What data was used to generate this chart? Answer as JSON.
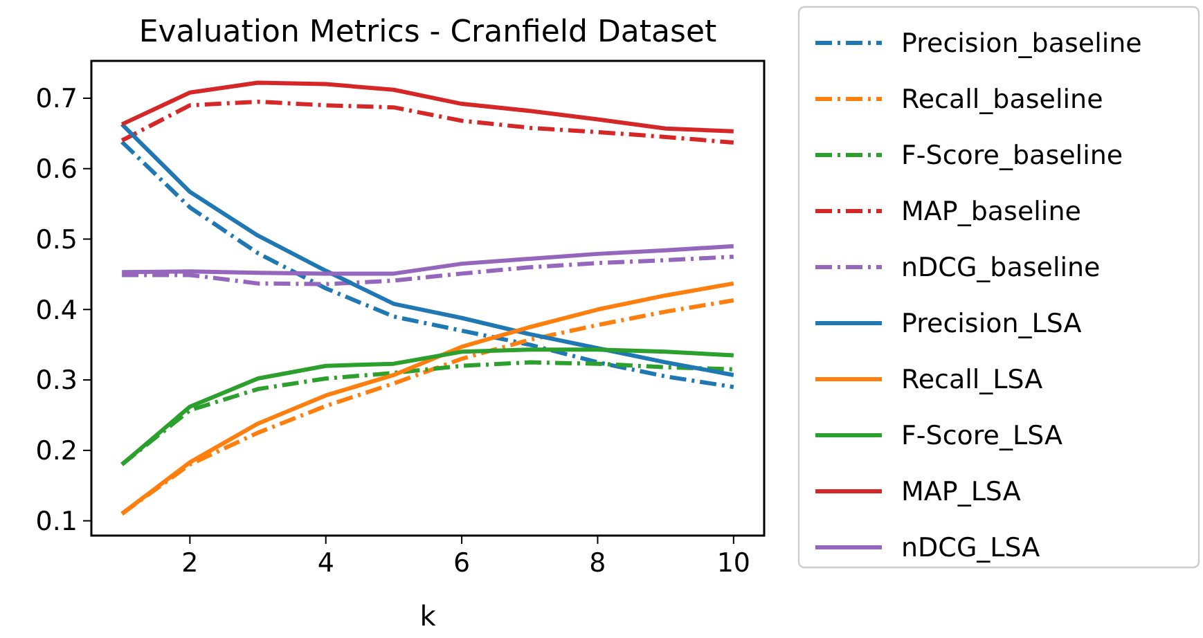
{
  "chart_data": {
    "type": "line",
    "title": "Evaluation Metrics - Cranfield Dataset",
    "xlabel": "k",
    "x": [
      1,
      2,
      3,
      4,
      5,
      6,
      7,
      8,
      9,
      10
    ],
    "xlim": [
      0.55,
      10.45
    ],
    "xticks": [
      2,
      4,
      6,
      8,
      10
    ],
    "ylim": [
      0.079,
      0.753
    ],
    "yticks": [
      {
        "value": 0.1,
        "label": "0.1"
      },
      {
        "value": 0.2,
        "label": "0.2"
      },
      {
        "value": 0.3,
        "label": "0.3"
      },
      {
        "value": 0.4,
        "label": "0.4"
      },
      {
        "value": 0.5,
        "label": "0.5"
      },
      {
        "value": 0.6,
        "label": "0.6"
      },
      {
        "value": 0.7,
        "label": "0.7"
      }
    ],
    "grid": false,
    "legend": "right",
    "marker": "none",
    "series": [
      {
        "name": "Precision_baseline",
        "color": "#1f77b4",
        "line_style": "dashdot",
        "values": [
          0.638,
          0.545,
          0.48,
          0.43,
          0.39,
          0.37,
          0.35,
          0.325,
          0.305,
          0.29
        ]
      },
      {
        "name": "Recall_baseline",
        "color": "#ff7f0e",
        "line_style": "dashdot",
        "values": [
          0.11,
          0.18,
          0.225,
          0.263,
          0.295,
          0.33,
          0.357,
          0.378,
          0.397,
          0.413
        ]
      },
      {
        "name": "F-Score_baseline",
        "color": "#2ca02c",
        "line_style": "dashdot",
        "values": [
          0.18,
          0.257,
          0.287,
          0.302,
          0.31,
          0.32,
          0.325,
          0.323,
          0.318,
          0.315
        ]
      },
      {
        "name": "MAP_baseline",
        "color": "#d62728",
        "line_style": "dashdot",
        "values": [
          0.64,
          0.69,
          0.695,
          0.69,
          0.687,
          0.668,
          0.658,
          0.652,
          0.645,
          0.637
        ]
      },
      {
        "name": "nDCG_baseline",
        "color": "#9467bd",
        "line_style": "dashdot",
        "values": [
          0.449,
          0.449,
          0.437,
          0.436,
          0.441,
          0.451,
          0.46,
          0.466,
          0.47,
          0.475
        ]
      },
      {
        "name": "Precision_LSA",
        "color": "#1f77b4",
        "line_style": "solid",
        "values": [
          0.663,
          0.567,
          0.505,
          0.455,
          0.408,
          0.388,
          0.365,
          0.345,
          0.325,
          0.307
        ]
      },
      {
        "name": "Recall_LSA",
        "color": "#ff7f0e",
        "line_style": "solid",
        "values": [
          0.11,
          0.183,
          0.238,
          0.278,
          0.307,
          0.347,
          0.375,
          0.4,
          0.42,
          0.437
        ]
      },
      {
        "name": "F-Score_LSA",
        "color": "#2ca02c",
        "line_style": "solid",
        "values": [
          0.18,
          0.262,
          0.302,
          0.32,
          0.323,
          0.34,
          0.343,
          0.343,
          0.34,
          0.335
        ]
      },
      {
        "name": "MAP_LSA",
        "color": "#d62728",
        "line_style": "solid",
        "values": [
          0.663,
          0.708,
          0.722,
          0.72,
          0.712,
          0.692,
          0.682,
          0.67,
          0.657,
          0.653
        ]
      },
      {
        "name": "nDCG_LSA",
        "color": "#9467bd",
        "line_style": "solid",
        "values": [
          0.453,
          0.454,
          0.452,
          0.451,
          0.451,
          0.465,
          0.472,
          0.479,
          0.484,
          0.49
        ]
      }
    ]
  }
}
